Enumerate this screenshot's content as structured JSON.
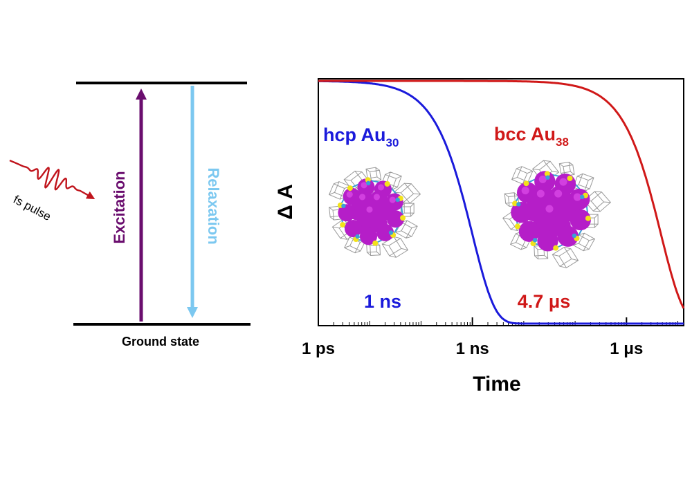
{
  "energy_diagram": {
    "pulse_label": "fs pulse",
    "excitation_label": "Excitation",
    "relaxation_label": "Relaxation",
    "ground_label": "Ground state",
    "colors": {
      "pulse": "#c0141c",
      "excitation": "#6a0d6e",
      "relaxation": "#7cc8f0",
      "level": "#000000"
    }
  },
  "chart_data": {
    "type": "line",
    "title": "",
    "xlabel": "Time",
    "ylabel": "Δ A",
    "xscale": "log",
    "x_ticks": [
      "1 ps",
      "1 ns",
      "1 μs"
    ],
    "xlim_seconds": [
      1e-12,
      1.3e-05
    ],
    "series": [
      {
        "name": "hcp Au30",
        "label_main": "hcp Au",
        "label_sub": "30",
        "lifetime_label": "1 ns",
        "lifetime_seconds": 1e-09,
        "color": "#1a1adb",
        "shape": "decay"
      },
      {
        "name": "bcc Au38",
        "label_main": "bcc Au",
        "label_sub": "38",
        "lifetime_label": "4.7 μs",
        "lifetime_seconds": 4.7e-06,
        "color": "#d01818",
        "shape": "decay"
      }
    ]
  }
}
